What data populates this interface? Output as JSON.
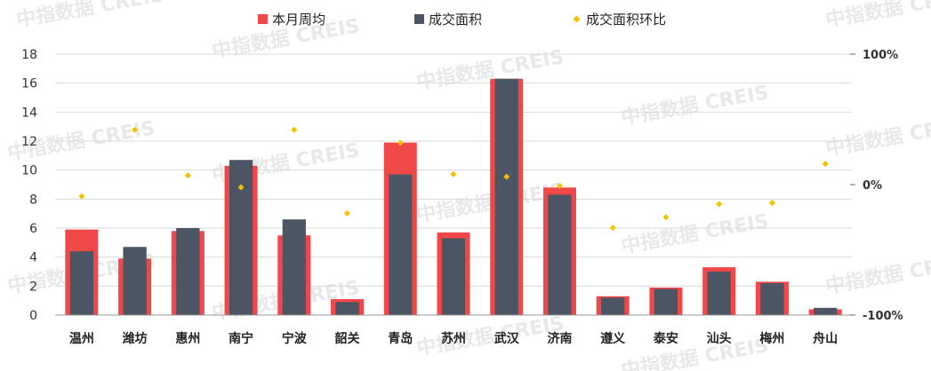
{
  "chart_data": {
    "type": "bar",
    "categories": [
      "温州",
      "潍坊",
      "惠州",
      "南宁",
      "宁波",
      "韶关",
      "青岛",
      "苏州",
      "武汉",
      "济南",
      "遵义",
      "泰安",
      "汕头",
      "梅州",
      "舟山"
    ],
    "series": [
      {
        "name": "本月周均",
        "kind": "bar",
        "axis": "left",
        "color": "#f04848",
        "values": [
          5.9,
          3.9,
          5.8,
          10.3,
          5.5,
          1.1,
          11.9,
          5.7,
          16.3,
          8.8,
          1.3,
          1.9,
          3.3,
          2.3,
          0.4
        ]
      },
      {
        "name": "成交面积",
        "kind": "bar",
        "axis": "left",
        "color": "#4b5563",
        "values": [
          4.4,
          4.7,
          6.0,
          10.7,
          6.6,
          0.9,
          9.7,
          5.3,
          16.3,
          8.3,
          1.2,
          1.8,
          3.0,
          2.2,
          0.5
        ]
      },
      {
        "name": "成交面积环比",
        "kind": "scatter",
        "axis": "right",
        "color": "#f5c000",
        "values": [
          -9,
          42,
          7,
          -2,
          42,
          -22,
          32,
          8,
          6,
          -1,
          -33,
          -25,
          -15,
          -14,
          16
        ]
      }
    ],
    "y_left": {
      "min": 0,
      "max": 18,
      "ticks": [
        "0",
        "2",
        "4",
        "6",
        "8",
        "10",
        "12",
        "14",
        "16",
        "18"
      ]
    },
    "y_right": {
      "min": -100,
      "max": 100,
      "ticks": [
        "-100%",
        "0%",
        "100%"
      ]
    },
    "grid": true,
    "legend_position": "top"
  },
  "watermark": {
    "text": "中指数据 CREIS"
  }
}
